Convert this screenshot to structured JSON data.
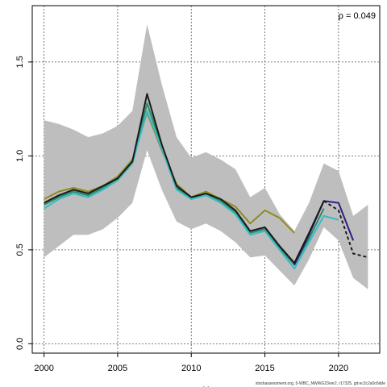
{
  "chart_data": {
    "type": "line",
    "title": "",
    "xlabel": "Y",
    "ylabel": "",
    "xlim": [
      1999.2,
      2022.8
    ],
    "ylim": [
      -0.05,
      1.8
    ],
    "grid": true,
    "x_ticks": [
      2000,
      2005,
      2010,
      2015,
      2020
    ],
    "y_ticks": [
      0.0,
      0.5,
      1.0,
      1.5
    ],
    "annotation": "ρ = 0.049",
    "footer": "stockassessment.org, 5-WBC_NWWG23ver2, r17325, git:ec2c2a0c6dde",
    "band": {
      "x": [
        2000,
        2001,
        2002,
        2003,
        2004,
        2005,
        2006,
        2007,
        2008,
        2009,
        2010,
        2011,
        2012,
        2013,
        2014,
        2015,
        2016,
        2017,
        2018,
        2019,
        2020,
        2021,
        2022
      ],
      "lower": [
        0.46,
        0.52,
        0.58,
        0.58,
        0.61,
        0.67,
        0.75,
        1.03,
        0.82,
        0.65,
        0.61,
        0.64,
        0.6,
        0.54,
        0.46,
        0.47,
        0.39,
        0.31,
        0.45,
        0.62,
        0.55,
        0.35,
        0.29
      ],
      "upper": [
        1.19,
        1.17,
        1.14,
        1.1,
        1.12,
        1.16,
        1.24,
        1.7,
        1.38,
        1.1,
        0.99,
        1.02,
        0.98,
        0.93,
        0.78,
        0.83,
        0.69,
        0.6,
        0.75,
        0.96,
        0.92,
        0.68,
        0.74
      ],
      "color": "#bebebe"
    },
    "series": [
      {
        "color": "#1a1a1a",
        "dashed_from": 2019,
        "x": [
          2000,
          2001,
          2002,
          2003,
          2004,
          2005,
          2006,
          2007,
          2008,
          2009,
          2010,
          2011,
          2012,
          2013,
          2014,
          2015,
          2016,
          2017,
          2018,
          2019,
          2020,
          2021,
          2022
        ],
        "values": [
          0.75,
          0.79,
          0.82,
          0.8,
          0.84,
          0.88,
          0.97,
          1.33,
          1.06,
          0.84,
          0.78,
          0.8,
          0.77,
          0.71,
          0.6,
          0.62,
          0.52,
          0.43,
          0.59,
          0.76,
          0.71,
          0.48,
          0.46
        ]
      },
      {
        "color": "#2b1f86",
        "x": [
          2017,
          2018,
          2019,
          2020,
          2021
        ],
        "values": [
          0.42,
          0.58,
          0.76,
          0.75,
          0.55
        ]
      },
      {
        "color": "#38bcc4",
        "x": [
          2000,
          2001,
          2002,
          2003,
          2004,
          2005,
          2006,
          2007,
          2008,
          2009,
          2010,
          2011,
          2012,
          2013,
          2014,
          2015,
          2016,
          2017,
          2018,
          2019,
          2020
        ],
        "values": [
          0.72,
          0.77,
          0.8,
          0.78,
          0.82,
          0.87,
          0.96,
          1.24,
          1.04,
          0.82,
          0.77,
          0.79,
          0.75,
          0.69,
          0.58,
          0.6,
          0.5,
          0.4,
          0.54,
          0.68,
          0.66
        ]
      },
      {
        "color": "#2a8a6b",
        "x": [
          2000,
          2001,
          2002,
          2003,
          2004,
          2005,
          2006,
          2007,
          2008,
          2009,
          2010,
          2011,
          2012,
          2013,
          2014,
          2015,
          2016,
          2017,
          2018,
          2019
        ],
        "values": [
          0.74,
          0.78,
          0.81,
          0.79,
          0.83,
          0.88,
          0.97,
          1.28,
          1.05,
          0.83,
          0.77,
          0.8,
          0.76,
          0.7,
          0.59,
          0.61,
          0.51,
          0.42,
          0.56,
          0.72
        ]
      },
      {
        "color": "#8f8b22",
        "x": [
          2000,
          2001,
          2002,
          2003,
          2004,
          2005,
          2006,
          2007,
          2008,
          2009,
          2010,
          2011,
          2012,
          2013,
          2014,
          2015,
          2016,
          2017
        ],
        "values": [
          0.77,
          0.81,
          0.83,
          0.81,
          0.84,
          0.89,
          0.98,
          1.23,
          1.03,
          0.85,
          0.78,
          0.81,
          0.77,
          0.73,
          0.64,
          0.71,
          0.67,
          0.59
        ]
      }
    ]
  }
}
